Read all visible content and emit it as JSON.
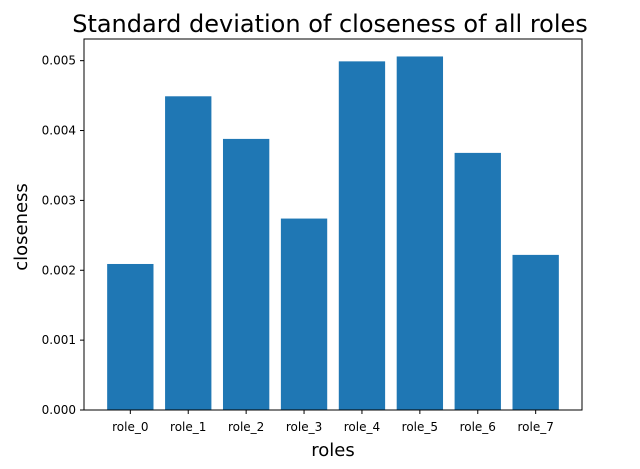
{
  "chart_data": {
    "type": "bar",
    "title": "Standard deviation of closeness of all roles",
    "xlabel": "roles",
    "ylabel": "closeness",
    "categories": [
      "role_0",
      "role_1",
      "role_2",
      "role_3",
      "role_4",
      "role_5",
      "role_6",
      "role_7"
    ],
    "values": [
      0.00209,
      0.00449,
      0.00388,
      0.00274,
      0.00499,
      0.00506,
      0.00368,
      0.00222
    ],
    "ylim": [
      0,
      0.00531
    ],
    "yticks": [
      0.0,
      0.001,
      0.002,
      0.003,
      0.004,
      0.005
    ],
    "ytick_labels": [
      "0.000",
      "0.001",
      "0.002",
      "0.003",
      "0.004",
      "0.005"
    ],
    "bar_color": "#1f77b4",
    "grid": false,
    "legend": "none"
  }
}
